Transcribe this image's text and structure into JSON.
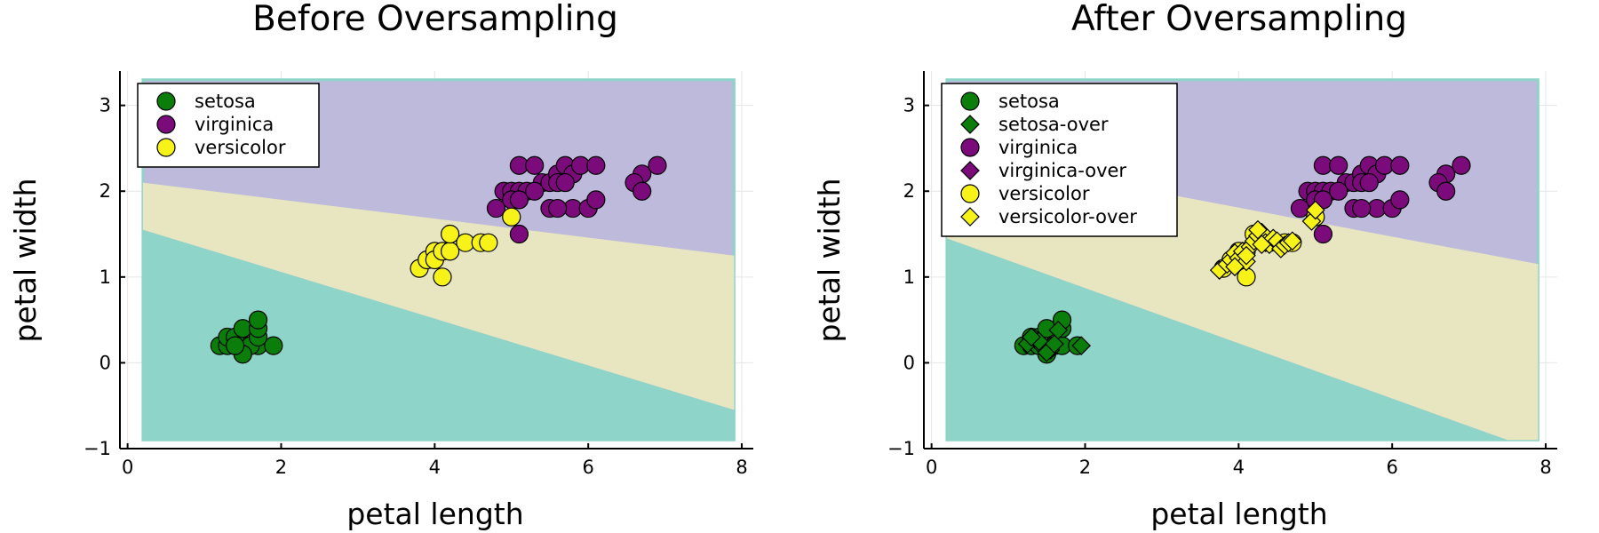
{
  "colors": {
    "setosa_region": "#8fd4c8",
    "versicolor_region": "#e8e6c0",
    "virginica_region": "#bdbadb",
    "setosa": "#0a7d0a",
    "virginica": "#7b0a7b",
    "versicolor": "#f7f217"
  },
  "chart_data": [
    {
      "type": "scatter",
      "title": "Before Oversampling",
      "xlabel": "petal length",
      "ylabel": "petal width",
      "xlim": [
        -0.1,
        8.15
      ],
      "ylim": [
        -1.0,
        3.4
      ],
      "xticks": [
        0,
        2,
        4,
        6,
        8
      ],
      "yticks": [
        -1,
        0,
        1,
        2,
        3
      ],
      "grid": true,
      "legend_position": "top-left",
      "decision_regions": {
        "x_range": [
          0.2,
          7.9
        ],
        "y_range": [
          -0.9,
          3.3
        ],
        "setosa_versicolor_boundary": [
          [
            0.2,
            1.55
          ],
          [
            7.9,
            -0.55
          ]
        ],
        "versicolor_virginica_boundary": [
          [
            0.2,
            2.1
          ],
          [
            7.9,
            1.25
          ]
        ]
      },
      "series": [
        {
          "name": "setosa",
          "marker": "circle",
          "color": "#0a7d0a",
          "x": [
            1.2,
            1.3,
            1.4,
            1.5,
            1.6,
            1.7,
            1.9,
            1.3,
            1.4,
            1.5,
            1.6,
            1.7,
            1.7,
            1.7,
            1.5,
            1.4
          ],
          "y": [
            0.2,
            0.2,
            0.2,
            0.2,
            0.2,
            0.2,
            0.2,
            0.3,
            0.3,
            0.4,
            0.2,
            0.3,
            0.4,
            0.5,
            0.1,
            0.2
          ]
        },
        {
          "name": "virginica",
          "marker": "circle",
          "color": "#7b0a7b",
          "x": [
            4.8,
            4.9,
            5.0,
            5.1,
            5.1,
            5.2,
            5.4,
            5.5,
            5.6,
            5.6,
            5.7,
            5.8,
            5.8,
            5.9,
            6.0,
            6.1,
            6.1,
            6.7,
            6.6,
            6.7,
            6.9,
            5.1,
            5.3,
            5.5,
            5.7,
            5.0,
            5.1,
            5.3,
            5.6
          ],
          "y": [
            1.8,
            2.0,
            2.0,
            2.0,
            2.3,
            2.0,
            2.1,
            2.1,
            2.2,
            2.1,
            2.3,
            2.2,
            1.8,
            2.3,
            1.8,
            2.3,
            1.9,
            2.2,
            2.1,
            2.0,
            2.3,
            1.5,
            2.3,
            1.8,
            2.1,
            1.9,
            1.9,
            2.0,
            1.8
          ]
        },
        {
          "name": "versicolor",
          "marker": "circle",
          "color": "#f7f217",
          "x": [
            3.8,
            3.9,
            4.0,
            4.0,
            4.1,
            4.1,
            4.2,
            4.2,
            4.4,
            4.6,
            4.7,
            5.0
          ],
          "y": [
            1.1,
            1.2,
            1.3,
            1.2,
            1.3,
            1.0,
            1.3,
            1.5,
            1.4,
            1.4,
            1.4,
            1.7
          ]
        }
      ]
    },
    {
      "type": "scatter",
      "title": "After Oversampling",
      "xlabel": "petal length",
      "ylabel": "petal width",
      "xlim": [
        -0.1,
        8.15
      ],
      "ylim": [
        -1.0,
        3.4
      ],
      "xticks": [
        0,
        2,
        4,
        6,
        8
      ],
      "yticks": [
        -1,
        0,
        1,
        2,
        3
      ],
      "grid": true,
      "legend_position": "top-left",
      "decision_regions": {
        "x_range": [
          0.2,
          7.9
        ],
        "y_range": [
          -0.9,
          3.3
        ],
        "setosa_versicolor_boundary": [
          [
            0.2,
            1.45
          ],
          [
            7.5,
            -0.9
          ]
        ],
        "versicolor_virginica_boundary": [
          [
            0.2,
            2.45
          ],
          [
            7.9,
            1.15
          ]
        ]
      },
      "series": [
        {
          "name": "setosa",
          "marker": "circle",
          "color": "#0a7d0a",
          "x": [
            1.2,
            1.3,
            1.4,
            1.5,
            1.6,
            1.7,
            1.9,
            1.3,
            1.4,
            1.5,
            1.7,
            1.7,
            1.5,
            1.4
          ],
          "y": [
            0.2,
            0.2,
            0.2,
            0.2,
            0.2,
            0.2,
            0.2,
            0.3,
            0.3,
            0.4,
            0.4,
            0.5,
            0.1,
            0.2
          ]
        },
        {
          "name": "setosa-over",
          "marker": "diamond",
          "color": "#0a7d0a",
          "x": [
            1.25,
            1.35,
            1.45,
            1.55,
            1.65,
            1.95,
            1.4,
            1.5,
            1.3,
            1.6
          ],
          "y": [
            0.22,
            0.28,
            0.18,
            0.15,
            0.38,
            0.2,
            0.25,
            0.12,
            0.3,
            0.22
          ]
        },
        {
          "name": "virginica",
          "marker": "circle",
          "color": "#7b0a7b",
          "x": [
            4.8,
            4.9,
            5.0,
            5.1,
            5.1,
            5.2,
            5.4,
            5.5,
            5.6,
            5.6,
            5.7,
            5.8,
            5.8,
            5.9,
            6.0,
            6.1,
            6.1,
            6.7,
            6.6,
            6.7,
            6.9,
            5.1,
            5.3,
            5.5,
            5.7,
            5.0,
            5.1,
            5.3,
            5.6
          ],
          "y": [
            1.8,
            2.0,
            2.0,
            2.0,
            2.3,
            2.0,
            2.1,
            2.1,
            2.2,
            2.1,
            2.3,
            2.2,
            1.8,
            2.3,
            1.8,
            2.3,
            1.9,
            2.2,
            2.1,
            2.0,
            2.3,
            1.5,
            2.3,
            1.8,
            2.1,
            1.9,
            1.9,
            2.0,
            1.8
          ]
        },
        {
          "name": "virginica-over",
          "marker": "diamond",
          "color": "#7b0a7b",
          "x": [],
          "y": []
        },
        {
          "name": "versicolor",
          "marker": "circle",
          "color": "#f7f217",
          "x": [
            3.8,
            3.9,
            4.0,
            4.1,
            4.1,
            4.2,
            4.4,
            4.6,
            4.7,
            5.0
          ],
          "y": [
            1.1,
            1.2,
            1.3,
            1.3,
            1.0,
            1.5,
            1.4,
            1.4,
            1.4,
            1.7
          ]
        },
        {
          "name": "versicolor-over",
          "marker": "diamond",
          "color": "#f7f217",
          "x": [
            3.75,
            3.85,
            3.9,
            3.95,
            4.0,
            4.05,
            4.1,
            4.15,
            4.2,
            4.25,
            4.3,
            4.35,
            4.4,
            4.45,
            4.5,
            4.55,
            4.6,
            4.65,
            4.7,
            4.95,
            5.0,
            4.25,
            4.1,
            3.95,
            4.3
          ],
          "y": [
            1.08,
            1.15,
            1.2,
            1.28,
            1.22,
            1.3,
            1.18,
            1.35,
            1.42,
            1.48,
            1.52,
            1.4,
            1.38,
            1.45,
            1.42,
            1.33,
            1.37,
            1.4,
            1.42,
            1.65,
            1.78,
            1.55,
            1.25,
            1.12,
            1.38
          ]
        }
      ]
    }
  ]
}
